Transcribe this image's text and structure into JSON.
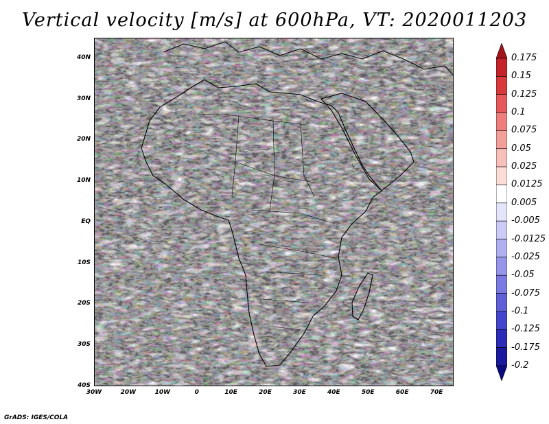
{
  "title": "Vertical velocity [m/s] at 600hPa, VT: 2020011203",
  "footer": "GrADS: IGES/COLA",
  "map": {
    "lat_labels": [
      "40N",
      "30N",
      "20N",
      "10N",
      "EQ",
      "10S",
      "20S",
      "30S",
      "40S"
    ],
    "lat_values": [
      40,
      30,
      20,
      10,
      0,
      -10,
      -20,
      -30,
      -40
    ],
    "lon_labels": [
      "30W",
      "20W",
      "10W",
      "0",
      "10E",
      "20E",
      "30E",
      "40E",
      "50E",
      "60E",
      "70E"
    ],
    "lon_values": [
      -30,
      -20,
      -10,
      0,
      10,
      20,
      30,
      40,
      50,
      60,
      70
    ],
    "lon_range": [
      -30,
      75
    ],
    "lat_range": [
      -40,
      45
    ],
    "variable": "Vertical velocity",
    "units": "m/s",
    "level": "600hPa",
    "valid_time": "2020011203"
  },
  "colorbar": {
    "labels": [
      "0.175",
      "0.15",
      "0.125",
      "0.1",
      "0.075",
      "0.05",
      "0.025",
      "0.0125",
      "0.005",
      "-0.005",
      "-0.0125",
      "-0.025",
      "-0.05",
      "-0.075",
      "-0.1",
      "-0.125",
      "-0.175",
      "-0.2"
    ],
    "colors": [
      "#a4141b",
      "#c42329",
      "#d83a3c",
      "#e6595a",
      "#ee7f7c",
      "#f3a09b",
      "#f8c0ba",
      "#fcdcd7",
      "#ffffff",
      "#e4e4fb",
      "#cbcbf6",
      "#b0b0f1",
      "#9595ea",
      "#7a7ae2",
      "#5f5fd8",
      "#4444cc",
      "#2c2cb8",
      "#1a1a9c",
      "#0c0c80"
    ]
  }
}
